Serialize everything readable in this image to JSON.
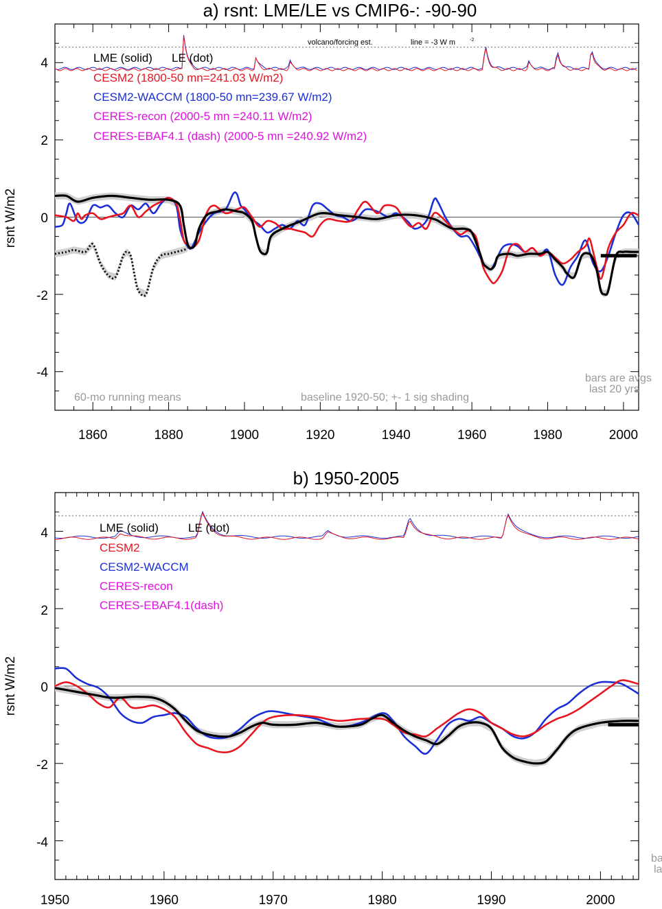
{
  "colors": {
    "cesm2": "#e8141e",
    "waccm": "#1a2fd6",
    "lme": "#000000",
    "ceres": "#e010e0",
    "shade": "#d0d0d0",
    "note": "#999999"
  },
  "chart_data": [
    {
      "type": "line",
      "title": "a) rsnt: LME/LE vs CMIP6-: -90-90",
      "ylabel": "rsnt W/m2",
      "xlim": [
        1850,
        2004
      ],
      "ylim": [
        -5,
        5
      ],
      "x_ticks": [
        "1860",
        "1880",
        "1900",
        "1920",
        "1940",
        "1960",
        "1980",
        "2000"
      ],
      "y_ticks": [
        "4",
        "2",
        "0",
        "-2",
        "-4"
      ],
      "legend": [
        {
          "text": "LME (solid)",
          "color": "lme"
        },
        {
          "text": "LE (dot)",
          "color": "lme"
        },
        {
          "text": "CESM2 (1800-50 mn=241.03 W/m2)",
          "color": "cesm2"
        },
        {
          "text": "CESM2-WACCM (1800-50 mn=239.67 W/m2)",
          "color": "waccm"
        },
        {
          "text": "CERES-recon (2000-5 mn =240.11 W/m2)",
          "color": "ceres"
        },
        {
          "text": "CERES-EBAF4.1 (dash) (2000-5 mn =240.92 W/m2)",
          "color": "ceres"
        }
      ],
      "annotations": {
        "volcano": "volcano/forcing est.",
        "line_note": "line = -3 W m",
        "line_note_sup": "-2",
        "running": "60-mo running means",
        "baseline": "baseline 1920-50; +- 1 sig shading",
        "bars1": "bars are avgs",
        "bars2": "last 20 yrs"
      },
      "dotted_ref_y": 4.4,
      "series": [
        {
          "name": "LME (solid)",
          "color": "lme",
          "x": [
            1850,
            1853,
            1856,
            1860,
            1865,
            1870,
            1875,
            1880,
            1883,
            1884,
            1885,
            1886,
            1887,
            1888,
            1890,
            1893,
            1895,
            1898,
            1900,
            1902,
            1903,
            1904,
            1905,
            1906,
            1907,
            1910,
            1915,
            1920,
            1925,
            1930,
            1935,
            1940,
            1945,
            1950,
            1952,
            1955,
            1958,
            1960,
            1962,
            1963,
            1964,
            1965,
            1966,
            1967,
            1970,
            1972,
            1975,
            1978,
            1980,
            1982,
            1984,
            1985,
            1987,
            1989,
            1991,
            1992,
            1993,
            1994,
            1995,
            1996,
            1998,
            2000,
            2002,
            2004
          ],
          "y": [
            0.55,
            0.55,
            0.4,
            0.5,
            0.55,
            0.5,
            0.45,
            0.45,
            0.3,
            -0.2,
            -0.7,
            -0.8,
            -0.7,
            -0.3,
            0.05,
            0.15,
            0.2,
            0.15,
            0.1,
            -0.1,
            -0.5,
            -0.85,
            -0.95,
            -0.9,
            -0.5,
            -0.3,
            -0.1,
            0.1,
            0.05,
            0.0,
            -0.05,
            0.05,
            0.05,
            -0.05,
            -0.15,
            -0.3,
            -0.3,
            -0.4,
            -0.9,
            -1.2,
            -1.3,
            -1.35,
            -1.25,
            -1.0,
            -0.95,
            -1.0,
            -0.95,
            -0.95,
            -0.9,
            -1.1,
            -1.3,
            -1.45,
            -1.55,
            -1.0,
            -0.95,
            -1.1,
            -1.4,
            -1.9,
            -2.0,
            -1.9,
            -1.0,
            -0.9,
            -0.9,
            -0.9
          ]
        },
        {
          "name": "LE (dot)",
          "color": "lme",
          "dotted": true,
          "x": [
            1850,
            1853,
            1855,
            1858,
            1860,
            1862,
            1864,
            1866,
            1868,
            1869,
            1870,
            1871,
            1872,
            1874,
            1876,
            1878,
            1880,
            1882,
            1884,
            1885
          ],
          "y": [
            -0.95,
            -0.9,
            -0.85,
            -0.9,
            -0.7,
            -1.2,
            -1.5,
            -1.55,
            -1.0,
            -0.9,
            -1.0,
            -1.5,
            -1.9,
            -2.0,
            -1.3,
            -1.0,
            -0.95,
            -0.9,
            -0.85,
            -0.8
          ]
        },
        {
          "name": "CESM2 (1800-50 mn=241.03 W/m2)",
          "color": "cesm2",
          "x": [
            1850,
            1853,
            1855,
            1856,
            1857,
            1858,
            1860,
            1862,
            1864,
            1866,
            1868,
            1870,
            1872,
            1874,
            1876,
            1878,
            1880,
            1882,
            1883,
            1884,
            1885,
            1886,
            1888,
            1890,
            1892,
            1895,
            1898,
            1900,
            1902,
            1904,
            1906,
            1908,
            1910,
            1912,
            1914,
            1916,
            1918,
            1920,
            1922,
            1925,
            1928,
            1930,
            1932,
            1935,
            1937,
            1940,
            1942,
            1944,
            1946,
            1948,
            1950,
            1952,
            1955,
            1957,
            1959,
            1961,
            1962,
            1963,
            1964,
            1965,
            1966,
            1968,
            1970,
            1972,
            1974,
            1976,
            1978,
            1980,
            1982,
            1984,
            1986,
            1988,
            1990,
            1991,
            1992,
            1993,
            1994,
            1995,
            1996,
            1998,
            2000,
            2002,
            2004
          ],
          "y": [
            0.05,
            0.0,
            -0.1,
            0.1,
            -0.05,
            0.05,
            0.1,
            -0.05,
            0.0,
            0.05,
            0.1,
            0.3,
            0.0,
            0.15,
            0.3,
            0.4,
            0.5,
            0.35,
            -0.05,
            -0.6,
            -0.7,
            -0.8,
            -0.6,
            0.1,
            0.3,
            0.1,
            0.2,
            0.25,
            0.0,
            -0.25,
            -0.1,
            -0.15,
            -0.3,
            -0.3,
            -0.35,
            -0.4,
            -0.5,
            -0.2,
            -0.05,
            -0.1,
            -0.1,
            0.2,
            0.4,
            0.1,
            0.3,
            0.25,
            -0.05,
            -0.25,
            -0.15,
            -0.3,
            0.1,
            0.0,
            -0.3,
            -0.45,
            -0.35,
            -0.5,
            -0.9,
            -1.3,
            -1.5,
            -1.65,
            -1.7,
            -1.4,
            -0.8,
            -0.7,
            -0.9,
            -0.8,
            -1.0,
            -0.9,
            -1.05,
            -1.2,
            -1.1,
            -0.9,
            -0.75,
            -0.55,
            -0.9,
            -1.3,
            -1.6,
            -1.3,
            -0.8,
            -0.4,
            -0.2,
            0.1,
            0.05
          ]
        },
        {
          "name": "CESM2-WACCM (1800-50 mn=239.67 W/m2)",
          "color": "waccm",
          "x": [
            1850,
            1852,
            1853,
            1854,
            1856,
            1858,
            1860,
            1862,
            1864,
            1866,
            1868,
            1870,
            1872,
            1874,
            1876,
            1878,
            1880,
            1882,
            1883,
            1884,
            1885,
            1886,
            1888,
            1890,
            1892,
            1895,
            1897,
            1898,
            1899,
            1900,
            1902,
            1904,
            1906,
            1908,
            1910,
            1912,
            1914,
            1916,
            1918,
            1920,
            1922,
            1924,
            1926,
            1928,
            1930,
            1932,
            1935,
            1938,
            1940,
            1943,
            1945,
            1948,
            1950,
            1951,
            1953,
            1955,
            1957,
            1959,
            1961,
            1962,
            1963,
            1964,
            1965,
            1966,
            1968,
            1970,
            1972,
            1974,
            1976,
            1978,
            1980,
            1982,
            1984,
            1986,
            1988,
            1990,
            1992,
            1994,
            1996,
            1998,
            2000,
            2002,
            2004
          ],
          "y": [
            -0.25,
            -0.2,
            0.1,
            0.35,
            -0.1,
            -0.1,
            0.3,
            0.25,
            0.3,
            0.1,
            0.0,
            0.3,
            0.2,
            0.35,
            0.1,
            0.35,
            0.5,
            0.3,
            -0.3,
            -0.6,
            -0.75,
            -0.8,
            -0.4,
            -0.1,
            0.1,
            0.2,
            0.6,
            0.6,
            0.3,
            0.2,
            -0.05,
            -0.2,
            -0.4,
            -0.3,
            -0.2,
            -0.3,
            -0.1,
            -0.2,
            0.3,
            0.35,
            0.2,
            0.05,
            0.0,
            -0.1,
            0.0,
            0.2,
            0.15,
            0.0,
            0.1,
            -0.1,
            -0.3,
            -0.1,
            0.45,
            0.4,
            0.0,
            -0.3,
            -0.5,
            -0.5,
            -0.8,
            -1.0,
            -1.2,
            -1.3,
            -1.35,
            -1.2,
            -0.8,
            -0.7,
            -0.75,
            -0.9,
            -0.8,
            -1.0,
            -0.85,
            -1.5,
            -1.75,
            -1.3,
            -1.0,
            -0.6,
            -1.2,
            -1.4,
            -1.0,
            -0.4,
            0.05,
            0.1,
            -0.2
          ]
        }
      ]
    },
    {
      "type": "line",
      "title": "b) 1950-2005",
      "ylabel": "rsnt W/m2",
      "xlim": [
        1950,
        2003.5
      ],
      "ylim": [
        -5,
        5
      ],
      "x_ticks": [
        "1950",
        "1960",
        "1970",
        "1980",
        "1990",
        "2000"
      ],
      "y_ticks": [
        "4",
        "2",
        "0",
        "-2",
        "-4"
      ],
      "legend": [
        {
          "text": "LME (solid)",
          "color": "lme"
        },
        {
          "text": "LE (dot)",
          "color": "lme"
        },
        {
          "text": "CESM2",
          "color": "cesm2"
        },
        {
          "text": "CESM2-WACCM",
          "color": "waccm"
        },
        {
          "text": "CERES-recon",
          "color": "ceres"
        },
        {
          "text": "CERES-EBAF4.1(dash)",
          "color": "ceres"
        }
      ],
      "annotations": {
        "bars1": "ba",
        "bars2": "la"
      },
      "dotted_ref_y": 4.4,
      "series": [
        {
          "name": "LME (solid)",
          "color": "lme",
          "x": [
            1950,
            1951,
            1952,
            1953,
            1954,
            1955,
            1956,
            1957,
            1958,
            1959,
            1960,
            1961,
            1962,
            1963,
            1964,
            1965,
            1966,
            1967,
            1968,
            1969,
            1970,
            1972,
            1974,
            1976,
            1978,
            1979,
            1980,
            1981,
            1982,
            1983,
            1984,
            1985,
            1986,
            1987,
            1988,
            1989,
            1990,
            1991,
            1992,
            1993,
            1994,
            1995,
            1996,
            1997,
            1998,
            2000,
            2002,
            2003.5
          ],
          "y": [
            -0.05,
            -0.1,
            -0.15,
            -0.2,
            -0.25,
            -0.3,
            -0.3,
            -0.28,
            -0.28,
            -0.3,
            -0.4,
            -0.6,
            -0.9,
            -1.15,
            -1.25,
            -1.3,
            -1.3,
            -1.2,
            -1.05,
            -0.95,
            -1.0,
            -1.0,
            -0.95,
            -1.05,
            -1.0,
            -0.85,
            -0.75,
            -0.95,
            -1.15,
            -1.3,
            -1.4,
            -1.5,
            -1.3,
            -1.05,
            -0.95,
            -0.95,
            -1.1,
            -1.6,
            -1.85,
            -1.95,
            -2.0,
            -1.95,
            -1.65,
            -1.3,
            -1.1,
            -0.95,
            -0.9,
            -0.9
          ]
        },
        {
          "name": "CESM2",
          "color": "cesm2",
          "x": [
            1950,
            1951,
            1952,
            1953,
            1954,
            1955,
            1956,
            1957,
            1958,
            1959,
            1960,
            1961,
            1962,
            1963,
            1964,
            1965,
            1966,
            1967,
            1968,
            1969,
            1970,
            1972,
            1974,
            1976,
            1978,
            1980,
            1981,
            1982,
            1983,
            1984,
            1985,
            1986,
            1987,
            1988,
            1989,
            1990,
            1991,
            1992,
            1993,
            1994,
            1995,
            1996,
            1997,
            1998,
            1999,
            2000,
            2001,
            2002,
            2003.5
          ],
          "y": [
            0.0,
            0.1,
            0.0,
            -0.2,
            -0.45,
            -0.55,
            -0.3,
            -0.55,
            -0.55,
            -0.5,
            -0.6,
            -0.8,
            -1.2,
            -1.5,
            -1.6,
            -1.7,
            -1.7,
            -1.55,
            -1.25,
            -0.95,
            -0.8,
            -0.75,
            -0.8,
            -0.9,
            -0.85,
            -0.85,
            -1.0,
            -1.2,
            -1.25,
            -1.3,
            -1.1,
            -0.9,
            -0.7,
            -0.6,
            -0.7,
            -0.95,
            -1.1,
            -1.25,
            -1.3,
            -1.2,
            -1.0,
            -0.85,
            -0.75,
            -0.6,
            -0.4,
            -0.2,
            0.0,
            0.15,
            0.05
          ]
        },
        {
          "name": "CESM2-WACCM",
          "color": "waccm",
          "x": [
            1950,
            1951,
            1952,
            1953,
            1954,
            1955,
            1956,
            1957,
            1958,
            1959,
            1960,
            1961,
            1962,
            1963,
            1964,
            1965,
            1966,
            1967,
            1968,
            1969,
            1970,
            1972,
            1974,
            1976,
            1978,
            1980,
            1981,
            1982,
            1983,
            1984,
            1985,
            1986,
            1987,
            1988,
            1989,
            1990,
            1991,
            1992,
            1993,
            1994,
            1995,
            1996,
            1997,
            1998,
            1999,
            2000,
            2001,
            2002,
            2003.5
          ],
          "y": [
            0.45,
            0.45,
            0.2,
            0.05,
            -0.05,
            -0.3,
            -0.7,
            -0.9,
            -0.95,
            -0.8,
            -0.75,
            -0.7,
            -0.8,
            -1.1,
            -1.3,
            -1.35,
            -1.3,
            -1.1,
            -0.85,
            -0.7,
            -0.65,
            -0.75,
            -0.85,
            -1.05,
            -0.95,
            -0.7,
            -0.9,
            -1.3,
            -1.55,
            -1.75,
            -1.4,
            -1.0,
            -0.85,
            -0.9,
            -0.8,
            -0.95,
            -1.1,
            -1.3,
            -1.35,
            -1.2,
            -0.85,
            -0.6,
            -0.45,
            -0.2,
            0.0,
            0.1,
            0.1,
            0.05,
            -0.2
          ]
        }
      ]
    }
  ]
}
